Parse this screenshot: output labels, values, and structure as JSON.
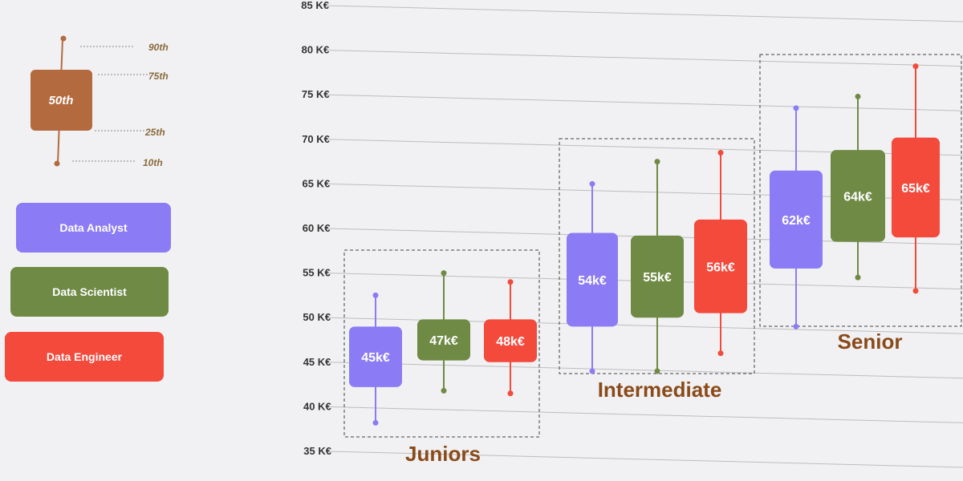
{
  "legend": {
    "key_median": "50th",
    "key_labels": [
      "90th",
      "75th",
      "25th",
      "10th"
    ],
    "key_color": "#b36a3e",
    "roles": [
      {
        "label": "Data Analyst",
        "color": "#8b7cf6"
      },
      {
        "label": "Data Scientist",
        "color": "#6f8a44"
      },
      {
        "label": "Data Engineer",
        "color": "#f44a3c"
      }
    ]
  },
  "chart_data": {
    "type": "box",
    "y_ticks": [
      "35 K€",
      "40 K€",
      "45 K€",
      "50 K€",
      "55 K€",
      "60 K€",
      "65 K€",
      "70 K€",
      "75 K€",
      "80 K€",
      "85 K€"
    ],
    "ylim": [
      35,
      85
    ],
    "grid": true,
    "groups": [
      {
        "name": "Juniors",
        "boxes": [
          {
            "role": "Data Analyst",
            "p10": 38.2,
            "p25": 42.2,
            "p50": 45,
            "p75": 49,
            "p90": 52.5,
            "label": "45k€"
          },
          {
            "role": "Data Scientist",
            "p10": 41.8,
            "p25": 45.2,
            "p50": 47,
            "p75": 49.8,
            "p90": 55,
            "label": "47k€"
          },
          {
            "role": "Data Engineer",
            "p10": 41.5,
            "p25": 45,
            "p50": 48,
            "p75": 49.8,
            "p90": 54,
            "label": "48k€"
          }
        ]
      },
      {
        "name": "Intermediate",
        "boxes": [
          {
            "role": "Data Analyst",
            "p10": 44,
            "p25": 49,
            "p50": 54,
            "p75": 59.5,
            "p90": 65,
            "label": "54k€"
          },
          {
            "role": "Data Scientist",
            "p10": 44,
            "p25": 50,
            "p50": 55,
            "p75": 59.2,
            "p90": 67.5,
            "label": "55k€"
          },
          {
            "role": "Data Engineer",
            "p10": 46,
            "p25": 50.5,
            "p50": 56,
            "p75": 61,
            "p90": 68.5,
            "label": "56k€"
          }
        ]
      },
      {
        "name": "Senior",
        "boxes": [
          {
            "role": "Data Analyst",
            "p10": 49,
            "p25": 55.5,
            "p50": 62,
            "p75": 66.5,
            "p90": 73.5,
            "label": "62k€"
          },
          {
            "role": "Data Scientist",
            "p10": 54.5,
            "p25": 58.5,
            "p50": 64,
            "p75": 68.8,
            "p90": 74.8,
            "label": "64k€"
          },
          {
            "role": "Data Engineer",
            "p10": 53,
            "p25": 59,
            "p50": 65,
            "p75": 70.2,
            "p90": 78.2,
            "label": "65k€"
          }
        ]
      }
    ]
  }
}
